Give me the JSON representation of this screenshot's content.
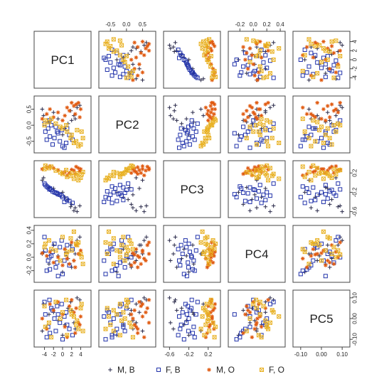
{
  "chart_data": {
    "type": "scatter",
    "subtype": "scatterplot-matrix",
    "title": "",
    "variables": [
      "PC1",
      "PC2",
      "PC3",
      "PC4",
      "PC5"
    ],
    "ranges": {
      "PC1": [
        -5.5,
        5.5
      ],
      "PC2": [
        -0.75,
        0.8
      ],
      "PC3": [
        -0.65,
        0.38
      ],
      "PC4": [
        -0.32,
        0.42
      ],
      "PC5": [
        -0.12,
        0.12
      ]
    },
    "tick_labels": {
      "PC1": [
        "-4",
        "-2",
        "0",
        "2",
        "4"
      ],
      "PC2": [
        "-0.5",
        "0.0",
        "0.5"
      ],
      "PC3": [
        "-0.6",
        "-0.2",
        "0.2"
      ],
      "PC4": [
        "-0.2",
        "0.0",
        "0.2",
        "0.4"
      ],
      "PC5": [
        "-0.10",
        "0.00",
        "0.10"
      ]
    },
    "tick_values": {
      "PC1": [
        -4,
        -2,
        0,
        2,
        4
      ],
      "PC2": [
        -0.5,
        0.0,
        0.5
      ],
      "PC3": [
        -0.6,
        -0.2,
        0.2
      ],
      "PC4": [
        -0.2,
        0.0,
        0.2,
        0.4
      ],
      "PC5": [
        -0.1,
        0.0,
        0.1
      ]
    },
    "axis_sides": {
      "top": [
        "PC2",
        "PC4"
      ],
      "bottom": [
        "PC1",
        "PC3",
        "PC5"
      ],
      "left": [
        "PC2",
        "PC4"
      ],
      "right": [
        "PC1",
        "PC3",
        "PC5"
      ]
    },
    "legend_position": "bottom",
    "series": [
      {
        "name": "M, B",
        "marker": "plus",
        "color": "#2a2a4a",
        "points": [
          {
            "PC1": 1.8,
            "PC2": 0.45,
            "PC3": -0.5,
            "PC4": 0.18,
            "PC5": 0.08
          },
          {
            "PC1": 2.5,
            "PC2": 0.3,
            "PC3": -0.58,
            "PC4": -0.05,
            "PC5": -0.02
          },
          {
            "PC1": 3.2,
            "PC2": 0.55,
            "PC3": -0.6,
            "PC4": 0.25,
            "PC5": 0.1
          },
          {
            "PC1": 2.0,
            "PC2": 0.15,
            "PC3": -0.45,
            "PC4": -0.15,
            "PC5": 0.04
          },
          {
            "PC1": -4.2,
            "PC2": 0.3,
            "PC3": 0.1,
            "PC4": 0.08,
            "PC5": 0.07
          },
          {
            "PC1": -3.0,
            "PC2": 0.1,
            "PC3": -0.1,
            "PC4": -0.1,
            "PC5": 0.02
          },
          {
            "PC1": -4.5,
            "PC2": 0.5,
            "PC3": 0.05,
            "PC4": 0.05,
            "PC5": -0.06
          },
          {
            "PC1": 0.5,
            "PC2": -0.1,
            "PC3": -0.3,
            "PC4": 0.12,
            "PC5": -0.03
          },
          {
            "PC1": 1.2,
            "PC2": 0.05,
            "PC3": -0.35,
            "PC4": -0.02,
            "PC5": 0.05
          },
          {
            "PC1": -1.0,
            "PC2": 0.2,
            "PC3": -0.25,
            "PC4": 0.02,
            "PC5": -0.01
          },
          {
            "PC1": 3.8,
            "PC2": 0.62,
            "PC3": -0.48,
            "PC4": 0.3,
            "PC5": 0.09
          },
          {
            "PC1": 0.0,
            "PC2": -0.3,
            "PC3": -0.2,
            "PC4": -0.22,
            "PC5": -0.08
          },
          {
            "PC1": -2.0,
            "PC2": 0.4,
            "PC3": -0.12,
            "PC4": 0.18,
            "PC5": 0.03
          },
          {
            "PC1": 2.8,
            "PC2": 0.2,
            "PC3": -0.52,
            "PC4": 0.05,
            "PC5": -0.05
          }
        ]
      },
      {
        "name": "F, B",
        "marker": "square",
        "color": "#2233aa",
        "points": [
          {
            "PC1": -3.8,
            "PC2": -0.2,
            "PC3": -0.05,
            "PC4": 0.1,
            "PC5": 0.02
          },
          {
            "PC1": -3.2,
            "PC2": -0.1,
            "PC3": -0.1,
            "PC4": -0.05,
            "PC5": -0.04
          },
          {
            "PC1": -2.5,
            "PC2": 0.0,
            "PC3": -0.15,
            "PC4": 0.02,
            "PC5": 0.05
          },
          {
            "PC1": -2.8,
            "PC2": -0.35,
            "PC3": -0.12,
            "PC4": -0.18,
            "PC5": -0.07
          },
          {
            "PC1": -1.8,
            "PC2": -0.4,
            "PC3": -0.2,
            "PC4": 0.2,
            "PC5": 0.0
          },
          {
            "PC1": -1.2,
            "PC2": -0.2,
            "PC3": -0.22,
            "PC4": -0.08,
            "PC5": 0.06
          },
          {
            "PC1": -0.6,
            "PC2": -0.5,
            "PC3": -0.25,
            "PC4": 0.15,
            "PC5": -0.02
          },
          {
            "PC1": 0.0,
            "PC2": -0.65,
            "PC3": -0.3,
            "PC4": -0.25,
            "PC5": -0.1
          },
          {
            "PC1": 0.8,
            "PC2": -0.55,
            "PC3": -0.33,
            "PC4": 0.05,
            "PC5": 0.03
          },
          {
            "PC1": 1.5,
            "PC2": -0.3,
            "PC3": -0.38,
            "PC4": -0.12,
            "PC5": -0.05
          },
          {
            "PC1": -4.0,
            "PC2": 0.05,
            "PC3": -0.02,
            "PC4": 0.3,
            "PC5": 0.08
          },
          {
            "PC1": -3.5,
            "PC2": -0.45,
            "PC3": -0.08,
            "PC4": -0.2,
            "PC5": -0.09
          },
          {
            "PC1": -2.2,
            "PC2": -0.6,
            "PC3": -0.18,
            "PC4": 0.08,
            "PC5": 0.04
          },
          {
            "PC1": -1.5,
            "PC2": -0.05,
            "PC3": -0.21,
            "PC4": -0.15,
            "PC5": -0.06
          },
          {
            "PC1": -0.2,
            "PC2": -0.15,
            "PC3": -0.27,
            "PC4": 0.25,
            "PC5": 0.07
          },
          {
            "PC1": 0.4,
            "PC2": -0.7,
            "PC3": -0.4,
            "PC4": -0.05,
            "PC5": 0.01
          },
          {
            "PC1": 2.2,
            "PC2": -0.45,
            "PC3": -0.42,
            "PC4": 0.12,
            "PC5": -0.08
          },
          {
            "PC1": -2.9,
            "PC2": 0.15,
            "PC3": -0.14,
            "PC4": 0.0,
            "PC5": 0.09
          },
          {
            "PC1": -1.0,
            "PC2": -0.25,
            "PC3": -0.24,
            "PC4": -0.28,
            "PC5": 0.02
          },
          {
            "PC1": 1.0,
            "PC2": -0.1,
            "PC3": -0.36,
            "PC4": 0.18,
            "PC5": -0.03
          }
        ]
      },
      {
        "name": "M, O",
        "marker": "asterisk",
        "color": "#e05a10",
        "points": [
          {
            "PC1": 2.5,
            "PC2": 0.6,
            "PC3": 0.25,
            "PC4": -0.05,
            "PC5": 0.03
          },
          {
            "PC1": 3.5,
            "PC2": 0.7,
            "PC3": 0.3,
            "PC4": 0.05,
            "PC5": -0.02
          },
          {
            "PC1": 1.5,
            "PC2": 0.45,
            "PC3": 0.2,
            "PC4": -0.1,
            "PC5": 0.06
          },
          {
            "PC1": 4.0,
            "PC2": 0.5,
            "PC3": 0.28,
            "PC4": 0.1,
            "PC5": 0.01
          },
          {
            "PC1": -3.5,
            "PC2": 0.35,
            "PC3": 0.32,
            "PC4": 0.02,
            "PC5": -0.05
          },
          {
            "PC1": -2.0,
            "PC2": 0.25,
            "PC3": 0.3,
            "PC4": -0.08,
            "PC5": 0.04
          },
          {
            "PC1": 0.5,
            "PC2": 0.3,
            "PC3": 0.22,
            "PC4": 0.12,
            "PC5": -0.04
          },
          {
            "PC1": -1.0,
            "PC2": 0.4,
            "PC3": 0.26,
            "PC4": 0.0,
            "PC5": 0.08
          },
          {
            "PC1": 2.8,
            "PC2": 0.35,
            "PC3": 0.18,
            "PC4": -0.15,
            "PC5": -0.07
          },
          {
            "PC1": 3.0,
            "PC2": 0.65,
            "PC3": 0.33,
            "PC4": 0.18,
            "PC5": 0.05
          },
          {
            "PC1": -4.5,
            "PC2": 0.2,
            "PC3": 0.28,
            "PC4": 0.06,
            "PC5": 0.0
          },
          {
            "PC1": 1.0,
            "PC2": 0.55,
            "PC3": 0.15,
            "PC4": -0.02,
            "PC5": -0.09
          },
          {
            "PC1": -2.8,
            "PC2": 0.5,
            "PC3": 0.34,
            "PC4": 0.08,
            "PC5": 0.07
          },
          {
            "PC1": 0.0,
            "PC2": 0.15,
            "PC3": 0.2,
            "PC4": -0.12,
            "PC5": 0.02
          },
          {
            "PC1": 3.8,
            "PC2": 0.25,
            "PC3": 0.24,
            "PC4": 0.04,
            "PC5": -0.03
          },
          {
            "PC1": 2.0,
            "PC2": 0.7,
            "PC3": 0.27,
            "PC4": 0.22,
            "PC5": 0.09
          }
        ]
      },
      {
        "name": "F, O",
        "marker": "boxed-cross",
        "color": "#e8b020",
        "points": [
          {
            "PC1": 2.0,
            "PC2": -0.3,
            "PC3": 0.2,
            "PC4": 0.1,
            "PC5": 0.02
          },
          {
            "PC1": 3.0,
            "PC2": -0.5,
            "PC3": 0.15,
            "PC4": 0.2,
            "PC5": -0.03
          },
          {
            "PC1": 4.0,
            "PC2": -0.6,
            "PC3": 0.1,
            "PC4": 0.05,
            "PC5": 0.05
          },
          {
            "PC1": 4.5,
            "PC2": -0.4,
            "PC3": 0.22,
            "PC4": -0.1,
            "PC5": -0.06
          },
          {
            "PC1": -4.0,
            "PC2": 0.0,
            "PC3": 0.28,
            "PC4": 0.15,
            "PC5": 0.06
          },
          {
            "PC1": -3.0,
            "PC2": 0.1,
            "PC3": 0.3,
            "PC4": 0.25,
            "PC5": -0.02
          },
          {
            "PC1": -1.5,
            "PC2": 0.05,
            "PC3": 0.25,
            "PC4": 0.1,
            "PC5": 0.08
          },
          {
            "PC1": 0.0,
            "PC2": -0.1,
            "PC3": 0.18,
            "PC4": 0.3,
            "PC5": 0.03
          },
          {
            "PC1": 1.0,
            "PC2": -0.2,
            "PC3": 0.12,
            "PC4": 0.08,
            "PC5": -0.08
          },
          {
            "PC1": 2.5,
            "PC2": -0.55,
            "PC3": 0.08,
            "PC4": 0.38,
            "PC5": 0.01
          },
          {
            "PC1": 3.5,
            "PC2": -0.65,
            "PC3": 0.05,
            "PC4": 0.22,
            "PC5": -0.05
          },
          {
            "PC1": 4.2,
            "PC2": -0.2,
            "PC3": 0.17,
            "PC4": 0.0,
            "PC5": 0.07
          },
          {
            "PC1": -2.5,
            "PC2": 0.2,
            "PC3": 0.33,
            "PC4": 0.12,
            "PC5": -0.09
          },
          {
            "PC1": -0.5,
            "PC2": -0.05,
            "PC3": 0.21,
            "PC4": -0.05,
            "PC5": 0.0
          },
          {
            "PC1": 1.8,
            "PC2": -0.4,
            "PC3": 0.14,
            "PC4": 0.28,
            "PC5": 0.04
          },
          {
            "PC1": 3.2,
            "PC2": -0.15,
            "PC3": 0.19,
            "PC4": 0.18,
            "PC5": -0.01
          },
          {
            "PC1": 0.8,
            "PC2": 0.0,
            "PC3": 0.26,
            "PC4": 0.04,
            "PC5": 0.09
          },
          {
            "PC1": -3.8,
            "PC2": 0.15,
            "PC3": 0.35,
            "PC4": 0.2,
            "PC5": -0.04
          }
        ]
      }
    ]
  }
}
